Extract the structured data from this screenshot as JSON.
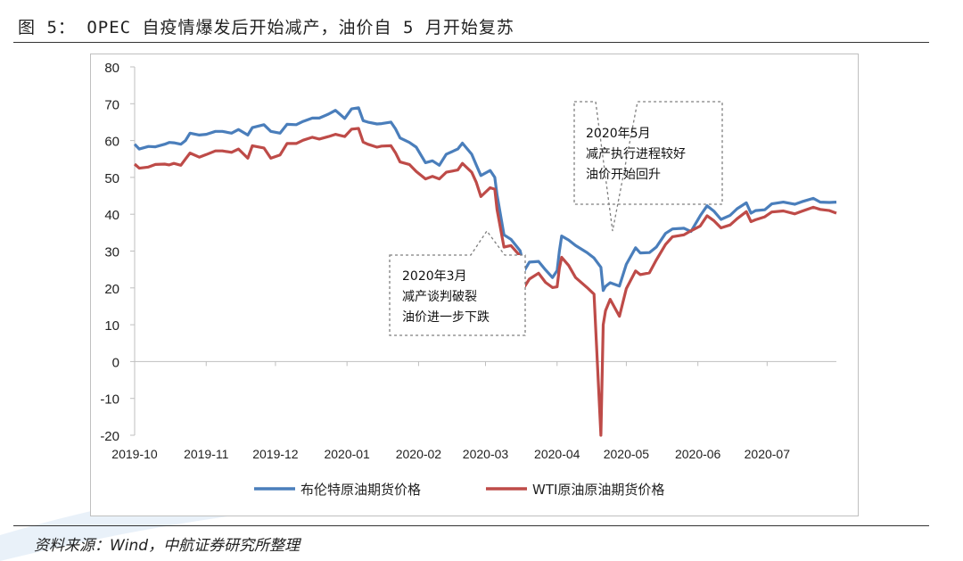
{
  "header": {
    "title": "图 5：  OPEC 自疫情爆发后开始减产，油价自 5 月开始复苏"
  },
  "footer": {
    "source": "资料来源：Wind，中航证券研究所整理"
  },
  "colors": {
    "brent": "#4a7ebb",
    "wti": "#be4b48",
    "axis": "#bfbfbf",
    "callout_border": "#7f7f7f"
  },
  "annotations": [
    {
      "lines": [
        "2020年3月",
        "减产谈判破裂",
        "油价进一步下跌"
      ]
    },
    {
      "lines": [
        "2020年5月",
        "减产执行进程较好",
        "油价开始回升"
      ]
    }
  ],
  "chart_data": {
    "type": "line",
    "title": "",
    "xlabel": "",
    "ylabel": "",
    "ylim": [
      -20,
      80
    ],
    "yticks": [
      80,
      70,
      60,
      50,
      40,
      30,
      20,
      10,
      0,
      -10,
      -20
    ],
    "xlim": [
      "2019-10-01",
      "2020-07-31"
    ],
    "xticks": [
      "2019-10",
      "2019-11",
      "2019-12",
      "2020-01",
      "2020-02",
      "2020-03",
      "2020-04",
      "2020-05",
      "2020-06",
      "2020-07"
    ],
    "grid": false,
    "legend": "bottom",
    "series": [
      {
        "name": "布伦特原油期货价格",
        "color": "#4a7ebb",
        "points": [
          [
            "2019-10-01",
            59
          ],
          [
            "2019-10-03",
            57.7
          ],
          [
            "2019-10-07",
            58.4
          ],
          [
            "2019-10-10",
            58.3
          ],
          [
            "2019-10-14",
            59
          ],
          [
            "2019-10-16",
            59.5
          ],
          [
            "2019-10-18",
            59.4
          ],
          [
            "2019-10-21",
            59
          ],
          [
            "2019-10-23",
            60
          ],
          [
            "2019-10-25",
            62
          ],
          [
            "2019-10-29",
            61.5
          ],
          [
            "2019-11-01",
            61.7
          ],
          [
            "2019-11-05",
            62.5
          ],
          [
            "2019-11-08",
            62.5
          ],
          [
            "2019-11-12",
            62
          ],
          [
            "2019-11-15",
            63
          ],
          [
            "2019-11-19",
            61.5
          ],
          [
            "2019-11-21",
            63.5
          ],
          [
            "2019-11-26",
            64.3
          ],
          [
            "2019-11-29",
            62.5
          ],
          [
            "2019-12-03",
            62
          ],
          [
            "2019-12-06",
            64.4
          ],
          [
            "2019-12-10",
            64.3
          ],
          [
            "2019-12-13",
            65.2
          ],
          [
            "2019-12-17",
            66.1
          ],
          [
            "2019-12-20",
            66.1
          ],
          [
            "2019-12-24",
            67.2
          ],
          [
            "2019-12-27",
            68.2
          ],
          [
            "2019-12-31",
            66
          ],
          [
            "2020-01-03",
            68.6
          ],
          [
            "2020-01-06",
            68.9
          ],
          [
            "2020-01-08",
            65.4
          ],
          [
            "2020-01-10",
            65
          ],
          [
            "2020-01-14",
            64.5
          ],
          [
            "2020-01-16",
            64.6
          ],
          [
            "2020-01-20",
            65
          ],
          [
            "2020-01-22",
            63.2
          ],
          [
            "2020-01-24",
            60.7
          ],
          [
            "2020-01-28",
            59.5
          ],
          [
            "2020-01-31",
            58.2
          ],
          [
            "2020-02-04",
            54
          ],
          [
            "2020-02-07",
            54.5
          ],
          [
            "2020-02-10",
            53.3
          ],
          [
            "2020-02-13",
            56.3
          ],
          [
            "2020-02-18",
            57.7
          ],
          [
            "2020-02-20",
            59.3
          ],
          [
            "2020-02-24",
            56.3
          ],
          [
            "2020-02-26",
            53.4
          ],
          [
            "2020-02-28",
            50.5
          ],
          [
            "2020-03-03",
            51.9
          ],
          [
            "2020-03-05",
            49.99
          ],
          [
            "2020-03-06",
            45.3
          ],
          [
            "2020-03-09",
            34.4
          ],
          [
            "2020-03-12",
            33.2
          ],
          [
            "2020-03-16",
            30.1
          ],
          [
            "2020-03-18",
            24.9
          ],
          [
            "2020-03-20",
            27
          ],
          [
            "2020-03-24",
            27.2
          ],
          [
            "2020-03-27",
            24.9
          ],
          [
            "2020-03-30",
            22.8
          ],
          [
            "2020-04-01",
            24.7
          ],
          [
            "2020-04-02",
            29.9
          ],
          [
            "2020-04-03",
            34.1
          ],
          [
            "2020-04-06",
            33
          ],
          [
            "2020-04-09",
            31.5
          ],
          [
            "2020-04-14",
            29.6
          ],
          [
            "2020-04-17",
            28.1
          ],
          [
            "2020-04-20",
            25.6
          ],
          [
            "2020-04-21",
            19.3
          ],
          [
            "2020-04-22",
            20.4
          ],
          [
            "2020-04-24",
            21.4
          ],
          [
            "2020-04-28",
            20.5
          ],
          [
            "2020-05-01",
            26.4
          ],
          [
            "2020-05-05",
            30.9
          ],
          [
            "2020-05-07",
            29.5
          ],
          [
            "2020-05-11",
            29.6
          ],
          [
            "2020-05-14",
            31.1
          ],
          [
            "2020-05-18",
            34.8
          ],
          [
            "2020-05-21",
            36
          ],
          [
            "2020-05-26",
            36.2
          ],
          [
            "2020-05-29",
            35.3
          ],
          [
            "2020-06-02",
            39.6
          ],
          [
            "2020-06-05",
            42.3
          ],
          [
            "2020-06-08",
            40.8
          ],
          [
            "2020-06-11",
            38.6
          ],
          [
            "2020-06-15",
            39.7
          ],
          [
            "2020-06-18",
            41.5
          ],
          [
            "2020-06-22",
            43.1
          ],
          [
            "2020-06-24",
            40.3
          ],
          [
            "2020-06-26",
            41
          ],
          [
            "2020-06-30",
            41.2
          ],
          [
            "2020-07-03",
            42.8
          ],
          [
            "2020-07-08",
            43.3
          ],
          [
            "2020-07-13",
            42.7
          ],
          [
            "2020-07-16",
            43.4
          ],
          [
            "2020-07-21",
            44.3
          ],
          [
            "2020-07-24",
            43.3
          ],
          [
            "2020-07-28",
            43.2
          ],
          [
            "2020-07-31",
            43.3
          ]
        ]
      },
      {
        "name": "WTI原油原油期货价格",
        "color": "#be4b48",
        "points": [
          [
            "2019-10-01",
            53.6
          ],
          [
            "2019-10-03",
            52.5
          ],
          [
            "2019-10-07",
            52.8
          ],
          [
            "2019-10-10",
            53.5
          ],
          [
            "2019-10-14",
            53.6
          ],
          [
            "2019-10-16",
            53.4
          ],
          [
            "2019-10-18",
            53.8
          ],
          [
            "2019-10-21",
            53.3
          ],
          [
            "2019-10-23",
            55
          ],
          [
            "2019-10-25",
            56.6
          ],
          [
            "2019-10-29",
            55.5
          ],
          [
            "2019-11-01",
            56.2
          ],
          [
            "2019-11-05",
            57.2
          ],
          [
            "2019-11-08",
            57.2
          ],
          [
            "2019-11-12",
            56.8
          ],
          [
            "2019-11-15",
            57.7
          ],
          [
            "2019-11-19",
            55.2
          ],
          [
            "2019-11-21",
            58.6
          ],
          [
            "2019-11-26",
            58
          ],
          [
            "2019-11-29",
            55.2
          ],
          [
            "2019-12-03",
            56.1
          ],
          [
            "2019-12-06",
            59.2
          ],
          [
            "2019-12-10",
            59.2
          ],
          [
            "2019-12-13",
            60.1
          ],
          [
            "2019-12-17",
            60.9
          ],
          [
            "2019-12-20",
            60.4
          ],
          [
            "2019-12-24",
            61.1
          ],
          [
            "2019-12-27",
            61.7
          ],
          [
            "2019-12-31",
            61.1
          ],
          [
            "2020-01-03",
            63.1
          ],
          [
            "2020-01-06",
            63.3
          ],
          [
            "2020-01-08",
            59.6
          ],
          [
            "2020-01-10",
            59
          ],
          [
            "2020-01-14",
            58.2
          ],
          [
            "2020-01-16",
            58.5
          ],
          [
            "2020-01-20",
            58.6
          ],
          [
            "2020-01-22",
            56.7
          ],
          [
            "2020-01-24",
            54.2
          ],
          [
            "2020-01-28",
            53.5
          ],
          [
            "2020-01-31",
            51.6
          ],
          [
            "2020-02-04",
            49.6
          ],
          [
            "2020-02-07",
            50.3
          ],
          [
            "2020-02-10",
            49.6
          ],
          [
            "2020-02-13",
            51.4
          ],
          [
            "2020-02-18",
            52
          ],
          [
            "2020-02-20",
            53.8
          ],
          [
            "2020-02-24",
            51.4
          ],
          [
            "2020-02-26",
            48.7
          ],
          [
            "2020-02-28",
            44.8
          ],
          [
            "2020-03-03",
            47.2
          ],
          [
            "2020-03-05",
            46.8
          ],
          [
            "2020-03-06",
            41.3
          ],
          [
            "2020-03-09",
            31.1
          ],
          [
            "2020-03-12",
            31.5
          ],
          [
            "2020-03-16",
            28.7
          ],
          [
            "2020-03-18",
            20.4
          ],
          [
            "2020-03-20",
            22.4
          ],
          [
            "2020-03-24",
            24
          ],
          [
            "2020-03-27",
            21.5
          ],
          [
            "2020-03-30",
            20.1
          ],
          [
            "2020-04-01",
            20.3
          ],
          [
            "2020-04-02",
            25.3
          ],
          [
            "2020-04-03",
            28.3
          ],
          [
            "2020-04-06",
            26.1
          ],
          [
            "2020-04-09",
            22.8
          ],
          [
            "2020-04-14",
            20.1
          ],
          [
            "2020-04-17",
            18.3
          ],
          [
            "2020-04-20",
            -20
          ],
          [
            "2020-04-21",
            10
          ],
          [
            "2020-04-22",
            13.8
          ],
          [
            "2020-04-24",
            16.9
          ],
          [
            "2020-04-28",
            12.3
          ],
          [
            "2020-05-01",
            19.8
          ],
          [
            "2020-05-05",
            24.6
          ],
          [
            "2020-05-07",
            23.6
          ],
          [
            "2020-05-11",
            24.1
          ],
          [
            "2020-05-14",
            27.6
          ],
          [
            "2020-05-18",
            31.8
          ],
          [
            "2020-05-21",
            33.9
          ],
          [
            "2020-05-26",
            34.4
          ],
          [
            "2020-05-29",
            35.5
          ],
          [
            "2020-06-02",
            36.8
          ],
          [
            "2020-06-05",
            39.6
          ],
          [
            "2020-06-08",
            38.2
          ],
          [
            "2020-06-11",
            36.3
          ],
          [
            "2020-06-15",
            37.1
          ],
          [
            "2020-06-18",
            38.8
          ],
          [
            "2020-06-22",
            40.7
          ],
          [
            "2020-06-24",
            38
          ],
          [
            "2020-06-26",
            38.5
          ],
          [
            "2020-06-30",
            39.3
          ],
          [
            "2020-07-03",
            40.6
          ],
          [
            "2020-07-08",
            40.9
          ],
          [
            "2020-07-13",
            40.1
          ],
          [
            "2020-07-16",
            40.8
          ],
          [
            "2020-07-21",
            41.9
          ],
          [
            "2020-07-24",
            41.3
          ],
          [
            "2020-07-28",
            41
          ],
          [
            "2020-07-31",
            40.3
          ]
        ]
      }
    ]
  }
}
